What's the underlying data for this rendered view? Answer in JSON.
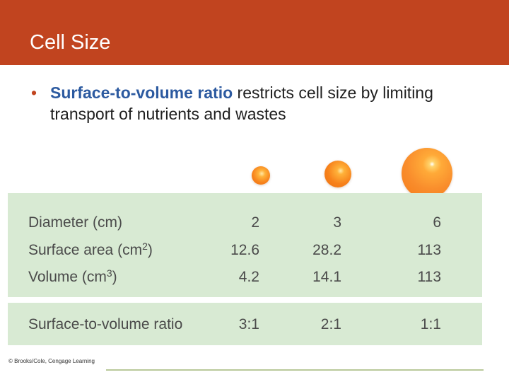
{
  "slide": {
    "title": "Cell Size",
    "bullet": {
      "term": "Surface-to-volume ratio",
      "rest": " restricts cell size by limiting transport of nutrients and wastes"
    }
  },
  "table": {
    "rows": [
      {
        "label_main": "Diameter (cm)",
        "label_sup": "",
        "label_tail": "",
        "values": [
          "2",
          "3",
          "6"
        ]
      },
      {
        "label_main": "Surface area (cm",
        "label_sup": "2",
        "label_tail": ")",
        "values": [
          "12.6",
          "28.2",
          "113"
        ]
      },
      {
        "label_main": "Volume (cm",
        "label_sup": "3",
        "label_tail": ")",
        "values": [
          "4.2",
          "14.1",
          "113"
        ]
      }
    ],
    "ratio": {
      "label": "Surface-to-volume ratio",
      "values": [
        "3:1",
        "2:1",
        "1:1"
      ]
    }
  },
  "credit": "© Brooks/Cole, Cengage Learning",
  "colors": {
    "title_bar": "#c1441f",
    "table_background": "#d8ead3",
    "term_text": "#2c5aa0",
    "sphere_orange": "#f7821b"
  }
}
